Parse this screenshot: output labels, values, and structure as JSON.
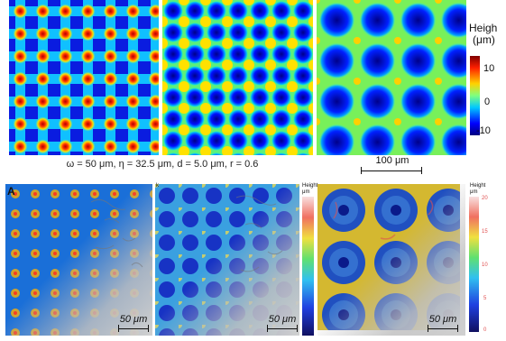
{
  "top_caption": "ω = 50 μm, η = 32.5 μm, d = 5.0 μm, r = 0.6",
  "top_scalebar": "100 μm",
  "colorbar_top": {
    "title_line1": "Heigh",
    "title_line2": "(μm)",
    "ticks": [
      "10",
      "0",
      "-10"
    ]
  },
  "bottom_panel_letter": "A",
  "bottom_small_letter": "k",
  "bottom_scalebars": [
    "50 μm",
    "50 μm",
    "50 μm"
  ],
  "colorbar_mid": {
    "title_line1": "Height",
    "title_line2": "μm"
  },
  "colorbar_right": {
    "title_line1": "Height",
    "title_line2": "μm",
    "ticks": [
      "20",
      "15",
      "10",
      "5",
      "0"
    ]
  }
}
